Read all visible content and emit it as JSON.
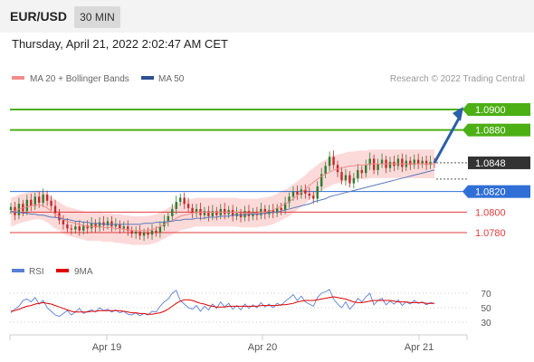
{
  "header": {
    "pair": "EUR/USD",
    "timeframe": "30 MIN"
  },
  "timestamp": "Thursday, April 21, 2022 2:02:47 AM CET",
  "legend": {
    "ma20_label": "MA 20 + Bollinger Bands",
    "ma50_label": "MA 50",
    "copyright": "Research © 2022 Trading Central"
  },
  "rsi_legend": {
    "rsi_label": "RSI",
    "ma_label": "9MA"
  },
  "colors": {
    "green": "#4caf14",
    "blue": "#2f6fd6",
    "red": "#e23b3b",
    "dark": "#333333",
    "candle_up": "#2e7d32",
    "candle_down": "#c62828",
    "bollinger": "#fbd3d3",
    "ma50": "#5a7ab8"
  },
  "chart_data": {
    "type": "candlestick",
    "x_ticks": [
      "Apr 19",
      "Apr 20",
      "Apr 21"
    ],
    "ylim": [
      1.0765,
      1.0915
    ],
    "levels": [
      {
        "value": "1.0900",
        "kind": "resistance",
        "color": "#4caf14"
      },
      {
        "value": "1.0880",
        "kind": "resistance",
        "color": "#4caf14"
      },
      {
        "value": "1.0848",
        "kind": "current",
        "color": "#333333"
      },
      {
        "value": "1.0820",
        "kind": "pivot",
        "color": "#2f6fd6"
      },
      {
        "value": "1.0800",
        "kind": "support",
        "color": "#e23b3b"
      },
      {
        "value": "1.0780",
        "kind": "support",
        "color": "#e23b3b"
      }
    ],
    "closes": [
      1.0805,
      1.0797,
      1.0808,
      1.0801,
      1.0812,
      1.0806,
      1.0815,
      1.0809,
      1.0817,
      1.0811,
      1.0806,
      1.0799,
      1.0792,
      1.0788,
      1.0784,
      1.0783,
      1.0786,
      1.0782,
      1.0787,
      1.0784,
      1.0789,
      1.0785,
      1.079,
      1.0787,
      1.0791,
      1.0786,
      1.0788,
      1.0784,
      1.0786,
      1.0782,
      1.0779,
      1.0781,
      1.0777,
      1.078,
      1.0778,
      1.0782,
      1.078,
      1.0786,
      1.0791,
      1.0796,
      1.0803,
      1.081,
      1.0814,
      1.0808,
      1.0804,
      1.0799,
      1.0803,
      1.0797,
      1.0801,
      1.0796,
      1.0801,
      1.0797,
      1.0803,
      1.0798,
      1.0802,
      1.0796,
      1.0799,
      1.0795,
      1.0801,
      1.0796,
      1.08,
      1.0797,
      1.0803,
      1.0798,
      1.0802,
      1.0799,
      1.0804,
      1.0802,
      1.0809,
      1.0815,
      1.082,
      1.0817,
      1.0822,
      1.0818,
      1.0816,
      1.0813,
      1.0825,
      1.0837,
      1.0845,
      1.0854,
      1.0846,
      1.0839,
      1.0831,
      1.0836,
      1.0828,
      1.0833,
      1.0841,
      1.0838,
      1.0846,
      1.0852,
      1.0841,
      1.0847,
      1.0851,
      1.0843,
      1.0849,
      1.0845,
      1.0852,
      1.0844,
      1.085,
      1.0846,
      1.0851,
      1.0847,
      1.085,
      1.0846,
      1.0849,
      1.0848
    ],
    "ma20": [
      1.08,
      1.0801,
      1.0803,
      1.0804,
      1.0805,
      1.0806,
      1.0807,
      1.0807,
      1.0806,
      1.0804,
      1.0801,
      1.0798,
      1.0796,
      1.0793,
      1.0791,
      1.079,
      1.0789,
      1.0788,
      1.0787,
      1.0786,
      1.0786,
      1.0786,
      1.0786,
      1.0785,
      1.0785,
      1.0785,
      1.0784,
      1.0784,
      1.0783,
      1.0783,
      1.0782,
      1.0782,
      1.0782,
      1.0782,
      1.0782,
      1.0783,
      1.0784,
      1.0786,
      1.0788,
      1.079,
      1.0792,
      1.0794,
      1.0796,
      1.0797,
      1.0798,
      1.0799,
      1.08,
      1.08,
      1.08,
      1.08,
      1.08,
      1.08,
      1.08,
      1.08,
      1.08,
      1.08,
      1.08,
      1.0799,
      1.0799,
      1.0799,
      1.0799,
      1.0799,
      1.08,
      1.08,
      1.0801,
      1.0802,
      1.0804,
      1.0806,
      1.0808,
      1.081,
      1.0813,
      1.0816,
      1.0819,
      1.0822,
      1.0826,
      1.0829,
      1.0832,
      1.0835,
      1.0837,
      1.0839,
      1.0841,
      1.0842,
      1.0843,
      1.0844,
      1.0845,
      1.0845,
      1.0846,
      1.0846,
      1.0846,
      1.0847,
      1.0847,
      1.0847,
      1.0847,
      1.0847,
      1.0847,
      1.0847,
      1.0847,
      1.0847,
      1.0847,
      1.0847,
      1.0847,
      1.0847,
      1.0847,
      1.0847,
      1.0847,
      1.0847
    ],
    "ma50": [
      1.0801,
      1.08,
      1.08,
      1.0799,
      1.0799,
      1.0798,
      1.0798,
      1.0797,
      1.0797,
      1.0796,
      1.0795,
      1.0795,
      1.0794,
      1.0793,
      1.0793,
      1.0792,
      1.0791,
      1.0791,
      1.079,
      1.079,
      1.0789,
      1.0789,
      1.0789,
      1.0788,
      1.0788,
      1.0788,
      1.0788,
      1.0788,
      1.0788,
      1.0788,
      1.0788,
      1.0788,
      1.0788,
      1.0789,
      1.0789,
      1.0789,
      1.079,
      1.079,
      1.079,
      1.0791,
      1.0791,
      1.0792,
      1.0792,
      1.0793,
      1.0793,
      1.0793,
      1.0794,
      1.0794,
      1.0794,
      1.0795,
      1.0795,
      1.0795,
      1.0796,
      1.0796,
      1.0796,
      1.0797,
      1.0797,
      1.0797,
      1.0797,
      1.0798,
      1.0798,
      1.0798,
      1.0798,
      1.0799,
      1.0799,
      1.08,
      1.08,
      1.0801,
      1.0802,
      1.0803,
      1.0804,
      1.0805,
      1.0806,
      1.0807,
      1.0808,
      1.081,
      1.0811,
      1.0812,
      1.0813,
      1.0815,
      1.0816,
      1.0817,
      1.0818,
      1.0819,
      1.082,
      1.0821,
      1.0822,
      1.0823,
      1.0824,
      1.0825,
      1.0826,
      1.0827,
      1.0828,
      1.0829,
      1.083,
      1.0831,
      1.0832,
      1.0833,
      1.0834,
      1.0835,
      1.0836,
      1.0837,
      1.0838,
      1.0839,
      1.084,
      1.0841
    ],
    "rsi": {
      "ylim": [
        20,
        80
      ],
      "ticks": [
        70,
        50,
        30
      ],
      "values": [
        43,
        48,
        52,
        60,
        62,
        58,
        64,
        55,
        60,
        50,
        45,
        40,
        38,
        42,
        46,
        40,
        44,
        49,
        42,
        45,
        47,
        44,
        50,
        46,
        48,
        44,
        47,
        43,
        45,
        41,
        40,
        43,
        39,
        42,
        40,
        45,
        44,
        52,
        58,
        62,
        70,
        74,
        60,
        55,
        50,
        48,
        53,
        45,
        52,
        47,
        55,
        49,
        58,
        51,
        56,
        48,
        53,
        47,
        55,
        49,
        54,
        50,
        57,
        51,
        55,
        50,
        56,
        53,
        59,
        63,
        68,
        60,
        66,
        58,
        55,
        52,
        64,
        70,
        72,
        75,
        62,
        55,
        50,
        58,
        48,
        54,
        63,
        58,
        65,
        70,
        54,
        60,
        63,
        54,
        59,
        55,
        61,
        53,
        58,
        55,
        60,
        56,
        58,
        54,
        57,
        56
      ],
      "ma9": [
        45,
        46,
        48,
        50,
        52,
        53,
        55,
        56,
        57,
        56,
        55,
        53,
        51,
        49,
        47,
        45,
        44,
        44,
        44,
        44,
        45,
        45,
        46,
        46,
        46,
        46,
        46,
        46,
        45,
        44,
        43,
        43,
        42,
        42,
        41,
        41,
        42,
        43,
        45,
        48,
        52,
        56,
        59,
        61,
        61,
        60,
        58,
        56,
        55,
        53,
        52,
        51,
        51,
        51,
        52,
        52,
        52,
        52,
        52,
        52,
        52,
        52,
        53,
        53,
        53,
        53,
        53,
        54,
        54,
        55,
        56,
        58,
        59,
        60,
        60,
        60,
        61,
        62,
        63,
        64,
        65,
        64,
        63,
        62,
        60,
        58,
        57,
        57,
        58,
        59,
        60,
        60,
        60,
        60,
        60,
        59,
        58,
        58,
        58,
        57,
        57,
        57,
        57,
        56,
        56,
        56
      ]
    }
  }
}
